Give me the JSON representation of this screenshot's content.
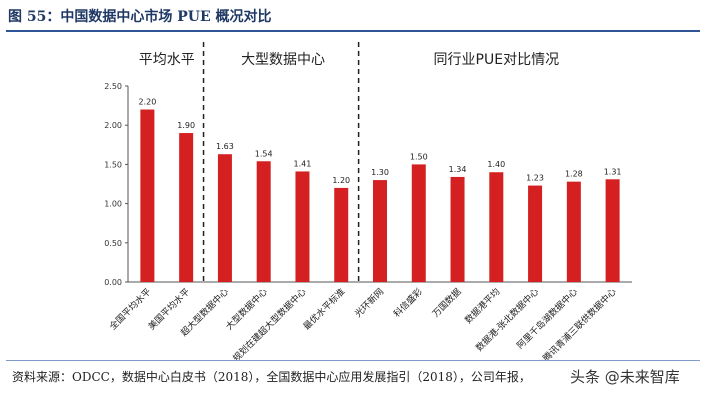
{
  "figure": {
    "title": "图 55：中国数据中心市场 PUE 概况对比",
    "source": "资料来源：ODCC，数据中心白皮书（2018），全国数据中心应用发展指引（2018），公司年报，",
    "watermark": "头条 @未来智库"
  },
  "chart_data": {
    "type": "bar",
    "title": "",
    "xlabel": "",
    "ylabel": "",
    "ylim": [
      0,
      2.5
    ],
    "yticks": [
      "0.00",
      "0.50",
      "1.00",
      "1.50",
      "2.00",
      "2.50"
    ],
    "grid": false,
    "bar_color": "#d42020",
    "groups": [
      {
        "label": "平均水平",
        "start": 0,
        "end": 1
      },
      {
        "label": "大型数据中心",
        "start": 2,
        "end": 5
      },
      {
        "label": "同行业PUE对比情况",
        "start": 6,
        "end": 12
      }
    ],
    "categories": [
      "全国平均水平",
      "美国平均水平",
      "超大型数据中心",
      "大型数据中心",
      "规划在建超大型数据中心",
      "最优水平标准",
      "光环新网",
      "科信盛彩",
      "万国数据",
      "数据港平均",
      "数据港-张北数据中心",
      "阿里千岛湖数据中心",
      "腾讯青浦三联供数据中心"
    ],
    "values": [
      2.2,
      1.9,
      1.63,
      1.54,
      1.41,
      1.2,
      1.3,
      1.5,
      1.34,
      1.4,
      1.23,
      1.28,
      1.31
    ],
    "value_labels": [
      "2.20",
      "1.90",
      "1.63",
      "1.54",
      "1.41",
      "1.20",
      "1.30",
      "1.50",
      "1.34",
      "1.40",
      "1.23",
      "1.28",
      "1.31"
    ]
  }
}
